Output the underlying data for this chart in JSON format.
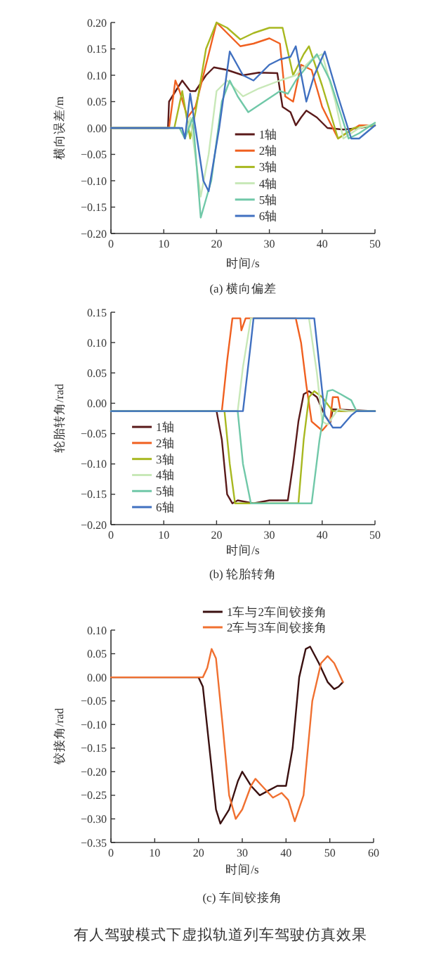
{
  "chart_data": [
    {
      "type": "line",
      "xlabel": "时间/s",
      "ylabel": "横向误差/m",
      "annotations": [
        "(a) 横向偏差"
      ],
      "xlim": [
        0,
        50
      ],
      "ylim": [
        -0.2,
        0.2
      ],
      "xticks": [
        0,
        10,
        20,
        30,
        40,
        50
      ],
      "yticks": [
        {
          "value": -0.2,
          "label": "−0.20"
        },
        {
          "value": -0.15,
          "label": "−0.15"
        },
        {
          "value": -0.1,
          "label": "−0.10"
        },
        {
          "value": -0.05,
          "label": "−0.05"
        },
        {
          "value": 0,
          "label": "0.00"
        },
        {
          "value": 0.05,
          "label": "0.05"
        },
        {
          "value": 0.1,
          "label": "0.10"
        },
        {
          "value": 0.15,
          "label": "0.15"
        },
        {
          "value": 0.2,
          "label": "0.20"
        }
      ],
      "grid": false,
      "legend": "bottom right",
      "marker": "none",
      "line_style": "solid",
      "series": [
        {
          "name": "1轴",
          "color": "#5a1a1a",
          "x": [
            0,
            10.8,
            11,
            13.5,
            15,
            16,
            18,
            19.5,
            22,
            25,
            28,
            31.5,
            32.5,
            34,
            35,
            36,
            37,
            39,
            41,
            44,
            47,
            50
          ],
          "values": [
            0,
            0,
            0.05,
            0.09,
            0.07,
            0.07,
            0.1,
            0.115,
            0.11,
            0.1,
            0.105,
            0.104,
            0.04,
            0.03,
            0.005,
            0.02,
            0.033,
            0.02,
            0,
            -0.003,
            0,
            0.005
          ]
        },
        {
          "name": "2轴",
          "color": "#f06020",
          "x": [
            0,
            11,
            12.2,
            13,
            14.5,
            16,
            18,
            20,
            22,
            24.5,
            27,
            30,
            32,
            33,
            34.5,
            36,
            38,
            40,
            43,
            47,
            50
          ],
          "values": [
            0,
            0,
            0.09,
            0.07,
            0.02,
            0.04,
            0.12,
            0.2,
            0.18,
            0.155,
            0.16,
            0.17,
            0.16,
            0.06,
            0.05,
            0.12,
            0.11,
            0.04,
            -0.02,
            0.005,
            0.005
          ]
        },
        {
          "name": "3轴",
          "color": "#a8b820",
          "x": [
            0,
            12,
            13.5,
            15,
            16,
            18,
            20,
            22,
            24.5,
            27,
            30,
            32.5,
            34.5,
            36.5,
            37.5,
            40,
            43,
            46,
            50
          ],
          "values": [
            0,
            0,
            0.07,
            -0.02,
            0.03,
            0.15,
            0.2,
            0.19,
            0.168,
            0.18,
            0.19,
            0.19,
            0.1,
            0.14,
            0.155,
            0.08,
            -0.02,
            0,
            0.005
          ]
        },
        {
          "name": "4轴",
          "color": "#c8e8b8",
          "x": [
            0,
            13,
            14,
            15,
            17,
            18.5,
            20,
            22,
            25,
            28,
            32,
            35,
            38,
            40,
            42.5,
            44,
            47,
            50
          ],
          "values": [
            0,
            0,
            -0.02,
            0.02,
            -0.13,
            -0.05,
            0.07,
            0.09,
            0.06,
            0.075,
            0.09,
            0.1,
            0.13,
            0.14,
            0.05,
            -0.02,
            0,
            0.008
          ]
        },
        {
          "name": "5轴",
          "color": "#70c8a8",
          "x": [
            0,
            13,
            14,
            15.5,
            17,
            19,
            21,
            22.5,
            24,
            26,
            29,
            32,
            33.5,
            35,
            39,
            41.5,
            45,
            47,
            50
          ],
          "values": [
            0,
            0,
            -0.02,
            0.02,
            -0.17,
            -0.1,
            0.05,
            0.09,
            0.06,
            0.03,
            0.05,
            0.07,
            0.065,
            0.09,
            0.14,
            0.09,
            -0.02,
            -0.01,
            0.01
          ]
        },
        {
          "name": "6轴",
          "color": "#4070c0",
          "x": [
            0,
            13.5,
            14,
            15,
            16,
            17.5,
            18.5,
            20.5,
            22.5,
            25,
            27,
            30,
            32,
            34,
            35,
            37,
            38.5,
            40.5,
            43,
            45.5,
            47,
            50
          ],
          "values": [
            0,
            0,
            -0.02,
            0.065,
            0,
            -0.1,
            -0.12,
            0,
            0.145,
            0.1,
            0.09,
            0.12,
            0.13,
            0.135,
            0.155,
            0.05,
            0.1,
            0.145,
            0.06,
            -0.02,
            -0.02,
            0.005
          ]
        }
      ]
    },
    {
      "type": "line",
      "xlabel": "时间/s",
      "ylabel": "轮胎转角/rad",
      "annotations": [
        "(b) 轮胎转角"
      ],
      "xlim": [
        0,
        50
      ],
      "ylim": [
        -0.2,
        0.15
      ],
      "xticks": [
        0,
        10,
        20,
        30,
        40,
        50
      ],
      "yticks": [
        {
          "value": -0.2,
          "label": "−0.20"
        },
        {
          "value": -0.15,
          "label": "−0.15"
        },
        {
          "value": -0.1,
          "label": "−0.10"
        },
        {
          "value": -0.05,
          "label": "−0.05"
        },
        {
          "value": 0,
          "label": "0.00"
        },
        {
          "value": 0.05,
          "label": "0.05"
        },
        {
          "value": 0.1,
          "label": "0.10"
        },
        {
          "value": 0.15,
          "label": "0.15"
        }
      ],
      "grid": false,
      "legend": "bottom left",
      "marker": "none",
      "line_style": "solid",
      "series": [
        {
          "name": "1轴",
          "color": "#5a1a1a",
          "x": [
            0,
            20,
            21,
            22,
            23,
            24,
            27,
            30,
            33.5,
            34.5,
            35.5,
            36.5,
            37.5,
            39,
            40.5,
            41.5,
            42,
            50
          ],
          "values": [
            -0.013,
            -0.013,
            -0.06,
            -0.15,
            -0.165,
            -0.16,
            -0.165,
            -0.16,
            -0.16,
            -0.1,
            -0.03,
            0.015,
            0.02,
            0.01,
            -0.02,
            -0.033,
            -0.01,
            -0.013
          ]
        },
        {
          "name": "2轴",
          "color": "#f06020",
          "x": [
            0,
            21,
            22,
            23,
            24.5,
            24.7,
            25.5,
            35,
            36,
            37,
            38,
            40,
            41.5,
            42,
            43,
            43.5,
            50
          ],
          "values": [
            -0.013,
            -0.013,
            0.07,
            0.14,
            0.14,
            0.12,
            0.14,
            0.14,
            0.1,
            0.03,
            -0.03,
            -0.045,
            -0.03,
            0.01,
            0.01,
            -0.013,
            -0.013
          ]
        },
        {
          "name": "3轴",
          "color": "#a8b820",
          "x": [
            0,
            21.5,
            22.5,
            23.5,
            35.5,
            36.5,
            37.5,
            38.5,
            40,
            42,
            50
          ],
          "values": [
            -0.013,
            -0.013,
            -0.1,
            -0.165,
            -0.165,
            -0.06,
            0.01,
            0.02,
            0.01,
            -0.013,
            -0.013
          ]
        },
        {
          "name": "4轴",
          "color": "#c8e8b8",
          "x": [
            0,
            24,
            25,
            26.5,
            37.5,
            39,
            40,
            41,
            43,
            45,
            50
          ],
          "values": [
            -0.013,
            -0.013,
            0.06,
            0.14,
            0.14,
            0.05,
            -0.03,
            -0.035,
            -0.01,
            -0.013,
            -0.013
          ]
        },
        {
          "name": "5轴",
          "color": "#70c8a8",
          "x": [
            0,
            24,
            25,
            26.5,
            38,
            39.5,
            41,
            42,
            43.5,
            45.5,
            46.5,
            50
          ],
          "values": [
            -0.013,
            -0.013,
            -0.1,
            -0.165,
            -0.165,
            -0.06,
            0.02,
            0.022,
            0.015,
            0.005,
            -0.013,
            -0.013
          ]
        },
        {
          "name": "6轴",
          "color": "#4070c0",
          "x": [
            0,
            25,
            26.5,
            27,
            38.5,
            39.5,
            40.5,
            42,
            43.5,
            45.5,
            46.5,
            50
          ],
          "values": [
            -0.013,
            -0.013,
            0.1,
            0.14,
            0.14,
            0.06,
            -0.02,
            -0.04,
            -0.04,
            -0.02,
            -0.013,
            -0.013
          ]
        }
      ]
    },
    {
      "type": "line",
      "xlabel": "时间/s",
      "ylabel": "铰接角/rad",
      "annotations": [
        "(c) 车间铰接角",
        "有人驾驶模式下虚拟轨道列车驾驶仿真效果"
      ],
      "xlim": [
        0,
        60
      ],
      "ylim": [
        -0.35,
        0.1
      ],
      "xticks": [
        0,
        10,
        20,
        30,
        40,
        50,
        60
      ],
      "yticks": [
        {
          "value": -0.35,
          "label": "−0.35"
        },
        {
          "value": -0.3,
          "label": "−0.30"
        },
        {
          "value": -0.25,
          "label": "−0.25"
        },
        {
          "value": -0.2,
          "label": "−0.20"
        },
        {
          "value": -0.15,
          "label": "−0.15"
        },
        {
          "value": -0.1,
          "label": "−0.10"
        },
        {
          "value": -0.05,
          "label": "−0.05"
        },
        {
          "value": 0,
          "label": "0.00"
        },
        {
          "value": 0.05,
          "label": "0.05"
        },
        {
          "value": 0.1,
          "label": "0.10"
        }
      ],
      "grid": false,
      "legend": "top",
      "marker": "none",
      "line_style": "solid",
      "series": [
        {
          "name": "1车与2车间铰接角",
          "color": "#3a1010",
          "x": [
            0,
            20,
            21,
            22.5,
            24,
            25,
            27,
            29,
            30,
            32,
            34,
            36,
            38,
            40,
            41.5,
            43,
            44.5,
            45.5,
            47.5,
            49.5,
            51,
            52,
            53
          ],
          "values": [
            0,
            0,
            -0.02,
            -0.15,
            -0.28,
            -0.31,
            -0.28,
            -0.22,
            -0.2,
            -0.23,
            -0.25,
            -0.24,
            -0.23,
            -0.23,
            -0.15,
            0,
            0.06,
            0.065,
            0.03,
            -0.01,
            -0.025,
            -0.02,
            -0.01
          ]
        },
        {
          "name": "2车与3车间铰接角",
          "color": "#f07030",
          "x": [
            0,
            21,
            22,
            23,
            24,
            25.5,
            27,
            28.5,
            30,
            32,
            33,
            34.5,
            37,
            39,
            40.5,
            42,
            44,
            46,
            48,
            49.5,
            51,
            52.5,
            53
          ],
          "values": [
            0,
            0,
            0.02,
            0.06,
            0.04,
            -0.1,
            -0.25,
            -0.3,
            -0.28,
            -0.23,
            -0.215,
            -0.23,
            -0.255,
            -0.245,
            -0.26,
            -0.305,
            -0.25,
            -0.05,
            0.03,
            0.045,
            0.03,
            0,
            -0.01
          ]
        }
      ]
    }
  ]
}
